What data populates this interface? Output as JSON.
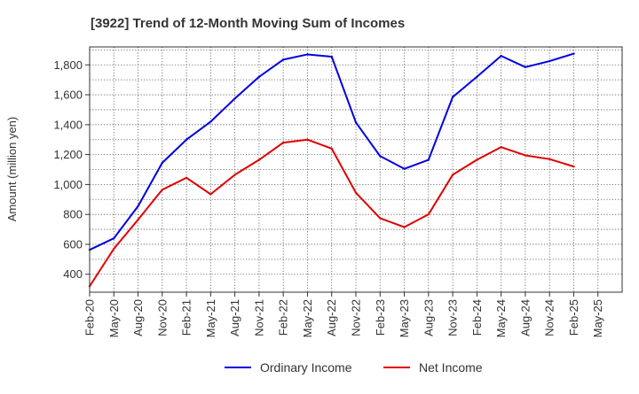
{
  "chart_data": {
    "type": "line",
    "title": "[3922]  Trend of 12-Month Moving Sum of Incomes",
    "xlabel": "",
    "ylabel": "Amount (million yen)",
    "ylim": [
      280,
      1920
    ],
    "yticks": [
      400,
      600,
      800,
      1000,
      1200,
      1400,
      1600,
      1800
    ],
    "ytick_labels": [
      "400",
      "600",
      "800",
      "1,000",
      "1,200",
      "1,400",
      "1,600",
      "1,800"
    ],
    "grid": true,
    "legend_position": "bottom-center",
    "categories": [
      "Feb-20",
      "May-20",
      "Aug-20",
      "Nov-20",
      "Feb-21",
      "May-21",
      "Aug-21",
      "Nov-21",
      "Feb-22",
      "May-22",
      "Aug-22",
      "Nov-22",
      "Feb-23",
      "May-23",
      "Aug-23",
      "Nov-23",
      "Feb-24",
      "May-24",
      "Aug-24",
      "Nov-24",
      "Feb-25",
      "May-25"
    ],
    "series": [
      {
        "name": "Ordinary Income",
        "color": "#0000e0",
        "values": [
          563,
          640,
          855,
          1145,
          1300,
          1420,
          1575,
          1720,
          1835,
          1870,
          1855,
          1415,
          1190,
          1105,
          1165,
          1585,
          1720,
          1860,
          1785,
          1825,
          1875,
          null
        ]
      },
      {
        "name": "Net Income",
        "color": "#e00000",
        "values": [
          320,
          570,
          765,
          965,
          1045,
          935,
          1065,
          1165,
          1280,
          1300,
          1240,
          945,
          775,
          715,
          800,
          1065,
          1165,
          1250,
          1195,
          1170,
          1120,
          null
        ]
      }
    ]
  }
}
